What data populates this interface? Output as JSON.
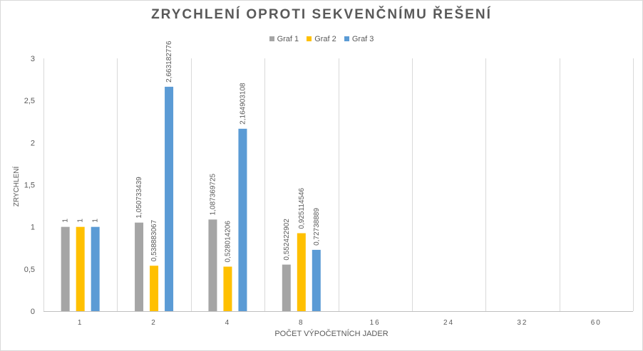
{
  "chart_data": {
    "type": "bar",
    "title": "ZRYCHLENÍ OPROTI SEKVENČNÍMU ŘEŠENÍ",
    "xlabel": "POČET VÝPOČETNÍCH JADER",
    "ylabel": "ZRYCHLENÍ",
    "categories": [
      "1",
      "2",
      "4",
      "8",
      "16",
      "24",
      "32",
      "60"
    ],
    "ylim": [
      0,
      3
    ],
    "yticks": [
      "0",
      "0,5",
      "1",
      "1,5",
      "2",
      "2,5",
      "3"
    ],
    "grid": "vertical category separators",
    "legend_position": "top",
    "series": [
      {
        "name": "Graf 1",
        "color": "#a5a5a5",
        "values": [
          1,
          1.050733439,
          1.087369725,
          0.552422902,
          null,
          null,
          null,
          null
        ],
        "labels": [
          "1",
          "1,050733439",
          "1,087369725",
          "0,552422902",
          "",
          "",
          "",
          ""
        ]
      },
      {
        "name": "Graf 2",
        "color": "#ffc000",
        "values": [
          1,
          0.538883067,
          0.528014206,
          0.925114546,
          null,
          null,
          null,
          null
        ],
        "labels": [
          "1",
          "0,538883067",
          "0,528014206",
          "0,925114546",
          "",
          "",
          "",
          ""
        ]
      },
      {
        "name": "Graf 3",
        "color": "#5b9bd5",
        "values": [
          1,
          2.663182776,
          2.164903108,
          0.72738889,
          null,
          null,
          null,
          null
        ],
        "labels": [
          "1",
          "2,663182776",
          "2,164903108",
          "0,72738889",
          "",
          "",
          "",
          ""
        ]
      }
    ]
  }
}
